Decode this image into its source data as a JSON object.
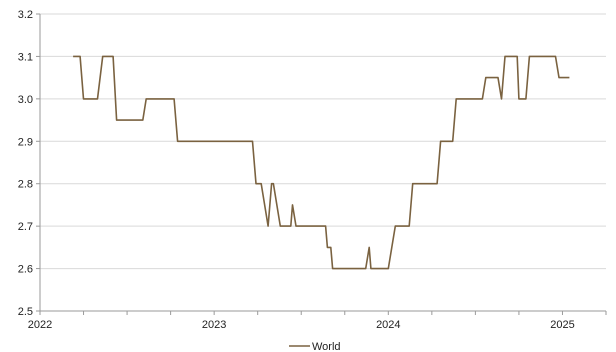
{
  "chart_data": {
    "type": "line",
    "title": "",
    "xlabel": "",
    "ylabel": "",
    "xlim": [
      2022.0,
      2025.25
    ],
    "ylim": [
      2.5,
      3.2
    ],
    "grid": true,
    "legend_position": "bottom-center",
    "x_ticks": [
      "2022",
      "2023",
      "2024",
      "2025"
    ],
    "y_ticks": [
      "2.5",
      "2.6",
      "2.7",
      "2.8",
      "2.9",
      "3.0",
      "3.1",
      "3.2"
    ],
    "series": [
      {
        "name": "World",
        "color": "#7a6240",
        "x": [
          2022.19,
          2022.23,
          2022.25,
          2022.33,
          2022.36,
          2022.42,
          2022.44,
          2022.59,
          2022.61,
          2022.77,
          2022.79,
          2023.22,
          2023.24,
          2023.27,
          2023.31,
          2023.33,
          2023.34,
          2023.38,
          2023.44,
          2023.45,
          2023.47,
          2023.64,
          2023.65,
          2023.67,
          2023.68,
          2023.87,
          2023.89,
          2023.9,
          2024.0,
          2024.04,
          2024.06,
          2024.12,
          2024.14,
          2024.28,
          2024.3,
          2024.37,
          2024.39,
          2024.54,
          2024.56,
          2024.63,
          2024.65,
          2024.67,
          2024.74,
          2024.75,
          2024.79,
          2024.81,
          2024.96,
          2024.98,
          2025.04
        ],
        "values": [
          3.1,
          3.1,
          3.0,
          3.0,
          3.1,
          3.1,
          2.95,
          2.95,
          3.0,
          3.0,
          2.9,
          2.9,
          2.8,
          2.8,
          2.7,
          2.8,
          2.8,
          2.7,
          2.7,
          2.75,
          2.7,
          2.7,
          2.65,
          2.65,
          2.6,
          2.6,
          2.65,
          2.6,
          2.6,
          2.7,
          2.7,
          2.7,
          2.8,
          2.8,
          2.9,
          2.9,
          3.0,
          3.0,
          3.05,
          3.05,
          3.0,
          3.1,
          3.1,
          3.0,
          3.0,
          3.1,
          3.1,
          3.05,
          3.05
        ]
      }
    ]
  }
}
